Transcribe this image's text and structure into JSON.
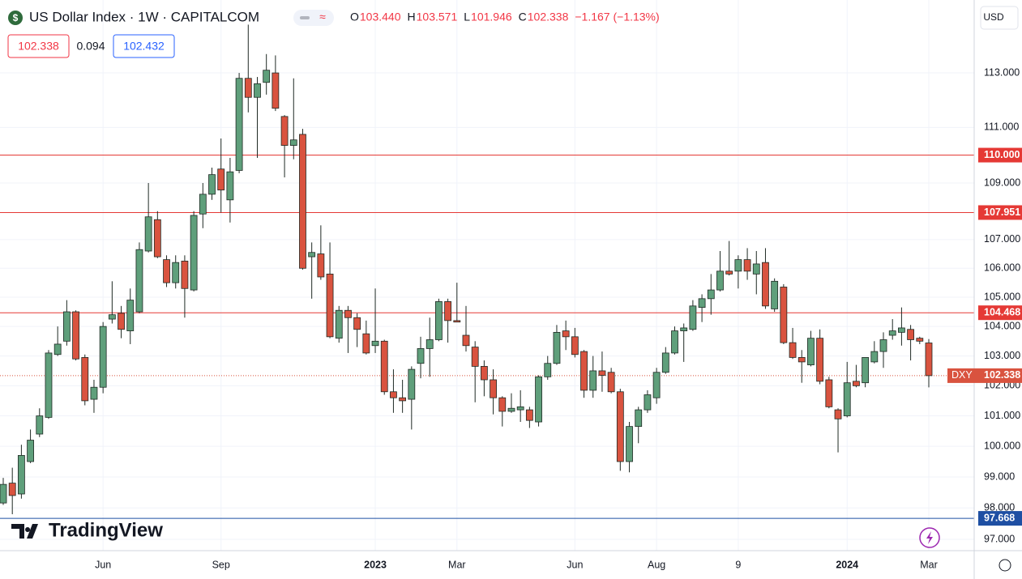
{
  "chart_data": {
    "type": "candlestick",
    "title": "US Dollar Index · 1W · CAPITALCOM",
    "header": [
      {
        "key": "O",
        "value": "103.440"
      },
      {
        "key": "H",
        "value": "103.571"
      },
      {
        "key": "L",
        "value": "101.946"
      },
      {
        "key": "C",
        "value": "102.338"
      }
    ],
    "change": "−1.167 (−1.13%)",
    "quote": {
      "bid": "102.338",
      "spread": "0.094",
      "ask": "102.432"
    },
    "currency": "USD",
    "logo": "TradingView",
    "price_label": {
      "symbol": "DXY",
      "label": "102.338"
    },
    "up_color": "#5f9f7b",
    "down_color": "#d9533f",
    "log_scale": true,
    "grid": true,
    "ylim": [
      96.64,
      115.73
    ],
    "yticks": [
      {
        "value": 113,
        "label": "113.000"
      },
      {
        "value": 111,
        "label": "111.000"
      },
      {
        "value": 109,
        "label": "109.000"
      },
      {
        "value": 107,
        "label": "107.000"
      },
      {
        "value": 106,
        "label": "106.000"
      },
      {
        "value": 105,
        "label": "105.000"
      },
      {
        "value": 104,
        "label": "104.000"
      },
      {
        "value": 103,
        "label": "103.000"
      },
      {
        "value": 102,
        "label": "102.000"
      },
      {
        "value": 101,
        "label": "101.000"
      },
      {
        "value": 100,
        "label": "100.000"
      },
      {
        "value": 99,
        "label": "99.000"
      },
      {
        "value": 98,
        "label": "98.000"
      },
      {
        "value": 97,
        "label": "97.000"
      }
    ],
    "levels": [
      {
        "value": 110,
        "label": "110.000",
        "color": "#e53935"
      },
      {
        "value": 107.951,
        "label": "107.951",
        "color": "#e53935"
      },
      {
        "value": 104.468,
        "label": "104.468",
        "color": "#e53935"
      },
      {
        "value": 97.668,
        "label": "97.668",
        "color": "#1e4fa3"
      }
    ],
    "categories": [
      null,
      null,
      null,
      null,
      null,
      null,
      null,
      null,
      null,
      null,
      null,
      "Jun",
      null,
      null,
      null,
      null,
      null,
      null,
      null,
      null,
      null,
      null,
      null,
      null,
      "Sep",
      null,
      null,
      null,
      null,
      null,
      null,
      null,
      null,
      null,
      null,
      null,
      null,
      null,
      null,
      null,
      null,
      "2023",
      null,
      null,
      null,
      null,
      null,
      null,
      null,
      null,
      "Mar",
      null,
      null,
      null,
      null,
      null,
      null,
      null,
      null,
      null,
      null,
      null,
      null,
      "Jun",
      null,
      null,
      null,
      null,
      null,
      null,
      null,
      null,
      "Aug",
      null,
      null,
      null,
      null,
      null,
      null,
      null,
      null,
      "9",
      null,
      null,
      null,
      null,
      null,
      null,
      null,
      null,
      null,
      null,
      null,
      "2024",
      null,
      null,
      null,
      null,
      null,
      null,
      null,
      null,
      "Mar"
    ],
    "open": [
      98.16,
      98.8,
      98.45,
      99.5,
      100.4,
      100.95,
      103.05,
      103.5,
      104.5,
      102.95,
      101.55,
      101.95,
      104.25,
      104.45,
      103.85,
      104.5,
      106.6,
      107.7,
      106.3,
      105.5,
      106.25,
      105.25,
      107.9,
      108.6,
      109.5,
      108.4,
      109.45,
      112.8,
      112.1,
      112.65,
      113.0,
      111.4,
      110.35,
      110.75,
      106.4,
      106.5,
      105.8,
      103.6,
      104.55,
      104.3,
      103.75,
      103.35,
      103.5,
      101.8,
      101.6,
      101.55,
      102.75,
      103.25,
      103.55,
      104.85,
      104.2,
      103.7,
      103.3,
      102.65,
      102.2,
      101.6,
      101.15,
      101.2,
      101.2,
      100.8,
      102.3,
      102.75,
      103.85,
      103.65,
      103.15,
      101.85,
      102.5,
      102.45,
      101.8,
      99.5,
      100.65,
      101.2,
      101.6,
      102.45,
      103.1,
      103.85,
      103.9,
      104.65,
      104.95,
      105.25,
      105.9,
      105.9,
      106.3,
      105.8,
      106.2,
      104.6,
      105.35,
      103.45,
      102.95,
      102.7,
      103.6,
      102.2,
      101.2,
      101.0,
      102.15,
      102.1,
      102.8,
      103.15,
      103.7,
      103.8,
      103.9,
      103.6,
      103.44
    ],
    "high": [
      98.97,
      99.3,
      100.05,
      100.55,
      101.25,
      103.2,
      104.0,
      104.9,
      104.55,
      103.05,
      102.2,
      104.15,
      105.55,
      104.7,
      105.3,
      106.9,
      109.0,
      108.0,
      106.45,
      106.45,
      106.45,
      108.0,
      109.0,
      109.55,
      110.6,
      109.9,
      113.0,
      114.8,
      112.85,
      113.7,
      113.65,
      111.45,
      112.8,
      110.95,
      106.9,
      107.5,
      106.9,
      104.7,
      104.7,
      104.45,
      104.2,
      105.3,
      103.55,
      102.55,
      102.2,
      102.65,
      103.65,
      104.3,
      104.95,
      104.95,
      105.5,
      104.7,
      103.5,
      102.85,
      102.55,
      101.65,
      101.75,
      101.85,
      101.3,
      102.35,
      103.0,
      104.05,
      104.2,
      103.95,
      103.2,
      103.0,
      103.15,
      102.6,
      101.9,
      100.8,
      101.3,
      101.85,
      102.6,
      103.3,
      104.0,
      104.1,
      104.9,
      105.1,
      105.8,
      106.6,
      106.95,
      106.45,
      106.7,
      106.6,
      106.7,
      105.65,
      105.45,
      103.95,
      103.2,
      103.85,
      103.9,
      102.3,
      101.25,
      102.8,
      102.7,
      102.95,
      103.5,
      103.8,
      104.25,
      104.65,
      104.05,
      103.65,
      103.571
    ],
    "low": [
      98.1,
      97.8,
      98.3,
      99.45,
      100.3,
      100.9,
      103.0,
      103.35,
      102.85,
      101.35,
      101.1,
      101.75,
      104.1,
      103.6,
      103.4,
      104.45,
      106.55,
      106.35,
      105.35,
      105.3,
      104.3,
      105.2,
      107.4,
      108.4,
      107.95,
      107.6,
      109.35,
      111.55,
      109.9,
      112.2,
      111.6,
      109.2,
      109.85,
      105.95,
      104.95,
      105.6,
      103.6,
      103.45,
      103.1,
      103.3,
      103.05,
      103.1,
      101.7,
      101.1,
      101.1,
      100.55,
      102.25,
      102.3,
      103.5,
      103.45,
      104.15,
      103.15,
      101.45,
      101.65,
      101.05,
      100.65,
      101.1,
      100.8,
      100.6,
      100.65,
      102.2,
      102.7,
      103.2,
      102.95,
      101.6,
      101.6,
      101.8,
      101.75,
      99.2,
      99.15,
      100.1,
      101.1,
      101.4,
      102.4,
      103.05,
      102.8,
      103.85,
      104.15,
      104.4,
      105.2,
      105.75,
      105.3,
      105.6,
      105.1,
      104.6,
      104.5,
      103.4,
      102.9,
      102.1,
      102.65,
      102.05,
      101.25,
      99.8,
      100.95,
      101.95,
      101.95,
      102.75,
      102.6,
      103.55,
      103.35,
      102.85,
      103.4,
      101.946
    ],
    "close": [
      98.76,
      98.4,
      99.7,
      100.2,
      101.0,
      103.1,
      103.4,
      104.5,
      102.9,
      101.5,
      101.95,
      104.0,
      104.4,
      103.9,
      104.9,
      106.65,
      107.8,
      106.4,
      105.5,
      106.2,
      105.3,
      107.85,
      108.6,
      109.3,
      108.75,
      109.4,
      112.8,
      112.1,
      112.6,
      113.1,
      111.7,
      110.35,
      110.55,
      106.0,
      106.55,
      105.7,
      103.65,
      104.55,
      104.3,
      103.9,
      103.1,
      103.5,
      101.8,
      101.6,
      101.5,
      102.55,
      103.25,
      103.55,
      104.85,
      104.2,
      104.15,
      103.35,
      102.65,
      102.2,
      101.6,
      101.15,
      101.25,
      101.3,
      100.85,
      102.3,
      102.75,
      103.8,
      103.65,
      103.05,
      101.85,
      102.5,
      102.35,
      101.8,
      99.5,
      100.65,
      101.2,
      101.7,
      102.45,
      103.1,
      103.85,
      103.95,
      104.7,
      104.95,
      105.25,
      105.9,
      105.8,
      106.3,
      105.9,
      106.15,
      104.7,
      105.55,
      103.45,
      102.95,
      102.8,
      103.6,
      102.15,
      101.3,
      100.9,
      102.1,
      102.0,
      102.95,
      103.15,
      103.55,
      103.85,
      103.95,
      103.55,
      103.5,
      102.338
    ]
  }
}
